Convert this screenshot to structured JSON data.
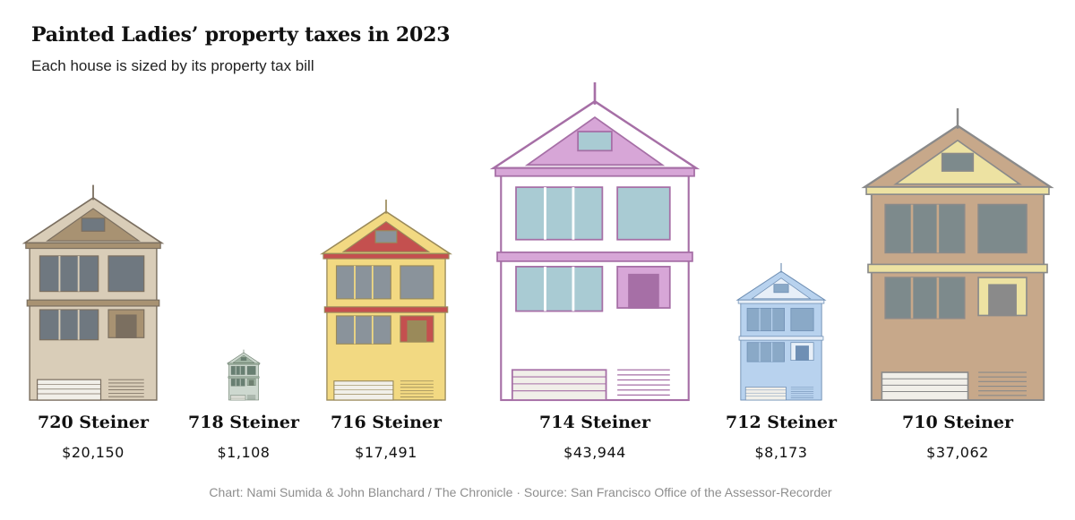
{
  "chart_data": {
    "type": "pictogram",
    "title": "Painted Ladies’ property taxes in 2023",
    "subtitle": "Each house is sized by its property tax bill",
    "categories": [
      "720 Steiner",
      "718 Steiner",
      "716 Steiner",
      "714 Steiner",
      "712 Steiner",
      "710 Steiner"
    ],
    "values": [
      20150,
      1108,
      17491,
      43944,
      8173,
      37062
    ],
    "value_labels": [
      "$20,150",
      "$1,108",
      "$17,491",
      "$43,944",
      "$8,173",
      "$37,062"
    ],
    "colors": [
      {
        "body": "#d9cdb8",
        "trim": "#7b6f60",
        "accent": "#a89272",
        "window": "#6f7880"
      },
      {
        "body": "#cdd8cf",
        "trim": "#6f8071",
        "accent": "#9fb3a2",
        "window": "#687f72"
      },
      {
        "body": "#f2d982",
        "trim": "#9a8a5a",
        "accent": "#c4504f",
        "window": "#8a939b"
      },
      {
        "body": "#ffffff",
        "trim": "#a66fa6",
        "accent": "#d7a6d7",
        "window": "#a9cbd3"
      },
      {
        "body": "#b8d2ee",
        "trim": "#6f8fb4",
        "accent": "#e7eff8",
        "window": "#8aa9c7"
      },
      {
        "body": "#c7a88a",
        "trim": "#8a8a8a",
        "accent": "#ede2a2",
        "window": "#7d8a8c"
      }
    ],
    "baseline": "bottom"
  },
  "credit": "Chart: Nami Sumida & John Blanchard / The Chronicle · Source: San Francisco Office of the Assessor-Recorder"
}
